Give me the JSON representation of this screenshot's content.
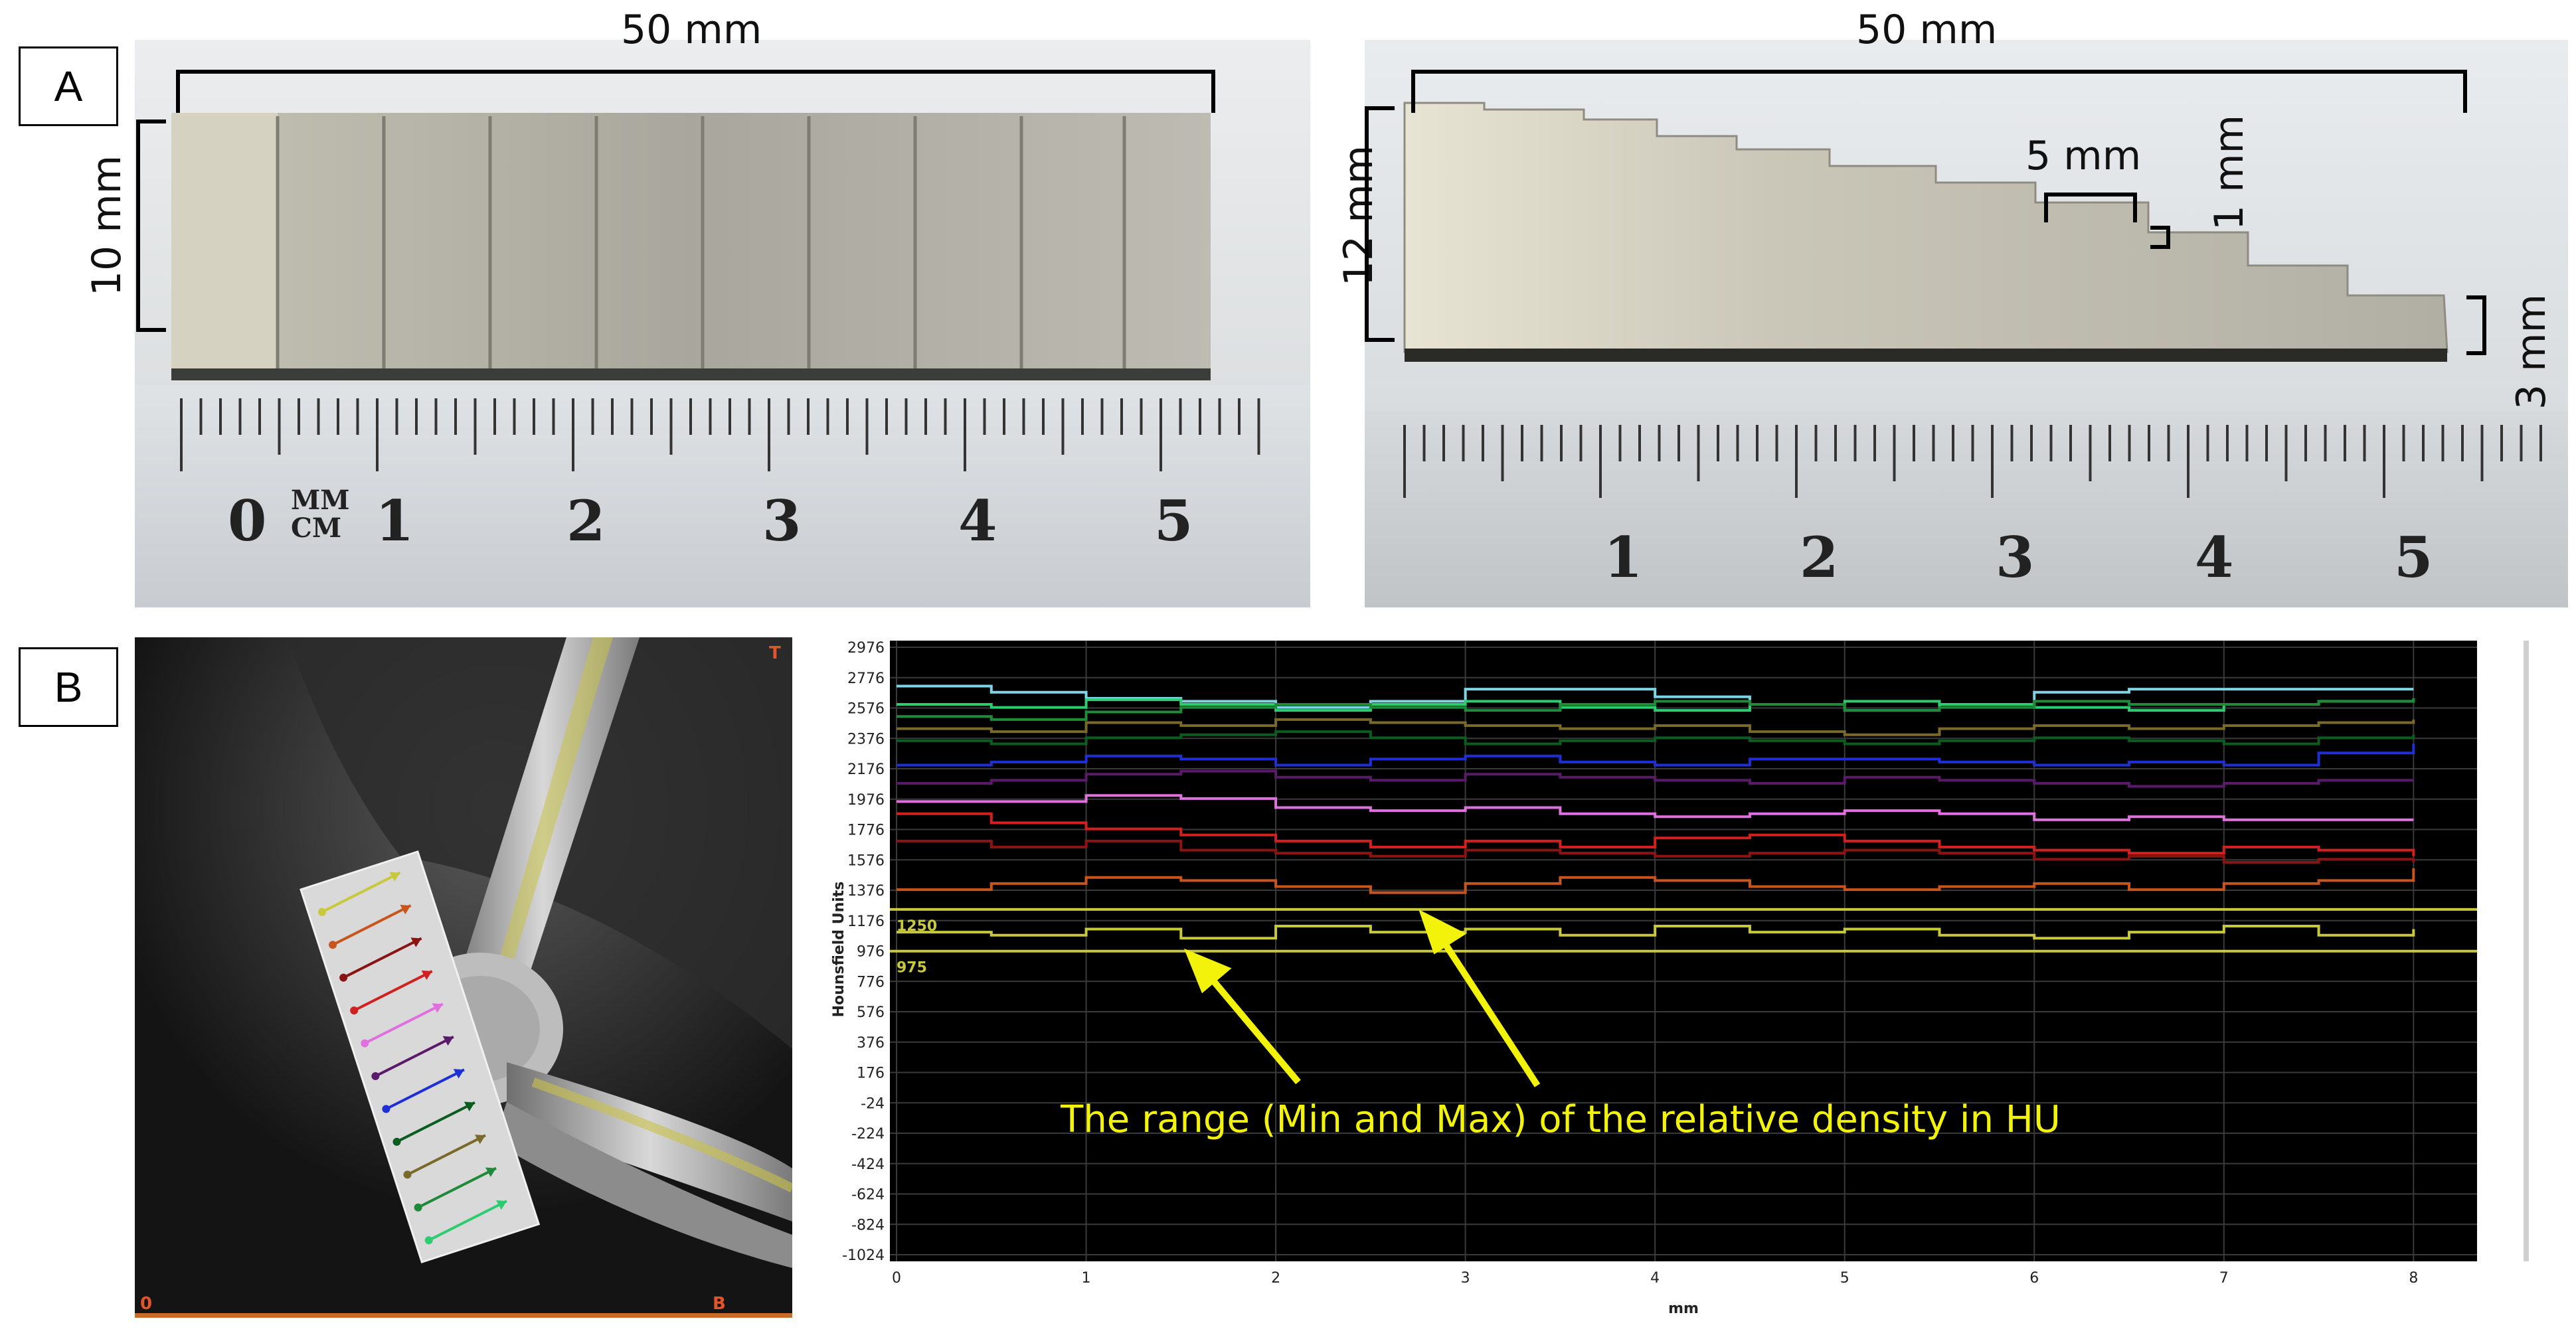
{
  "panels": {
    "a_label": "A",
    "b_label": "B"
  },
  "panel_a": {
    "left": {
      "length_label": "50 mm",
      "height_label": "10 mm",
      "ruler_numbers": [
        "0",
        "1",
        "2",
        "3",
        "4",
        "5"
      ],
      "ruler_unit_mm": "MM",
      "ruler_unit_cm": "CM"
    },
    "right": {
      "length_label": "50 mm",
      "height_label": "12 mm",
      "step_length_label": "5 mm",
      "step_height_label": "1 mm",
      "end_height_label": "3 mm",
      "ruler_numbers": [
        "1",
        "2",
        "3",
        "4",
        "5"
      ]
    }
  },
  "panel_b": {
    "xray": {
      "corner_top_right": "T",
      "corner_bottom_left": "0",
      "corner_bottom_right": "B"
    },
    "annotation": "The range (Min and Max) of the relative density in HU",
    "colors": {
      "annotation": "#f2f20a",
      "background": "#000000",
      "threshold": "#c8c83c"
    }
  },
  "chart_data": {
    "type": "line",
    "xlabel": "mm",
    "ylabel": "Hounsfield Units",
    "xlim": [
      0,
      8.3
    ],
    "ylim": [
      -1024,
      2976
    ],
    "x_ticks": [
      0,
      1,
      2,
      3,
      4,
      5,
      6,
      7,
      8
    ],
    "y_ticks": [
      2976,
      2776,
      2576,
      2376,
      2176,
      1976,
      1776,
      1576,
      1376,
      1176,
      976,
      776,
      576,
      376,
      176,
      -24,
      -224,
      -424,
      -624,
      -824,
      -1024
    ],
    "grid": true,
    "thresholds": [
      {
        "label": "1250",
        "value": 1250
      },
      {
        "label": "975",
        "value": 975
      }
    ],
    "series": [
      {
        "color": "#7fd3e6",
        "x": [
          0,
          0.5,
          1,
          1.5,
          2,
          2.5,
          3,
          3.5,
          4,
          4.5,
          5,
          5.5,
          6,
          6.5,
          7,
          7.5,
          8
        ],
        "values": [
          2720,
          2680,
          2640,
          2620,
          2580,
          2620,
          2700,
          2700,
          2650,
          2600,
          2560,
          2600,
          2680,
          2700,
          2700,
          2700,
          2700
        ]
      },
      {
        "color": "#2ecc71",
        "x": [
          0,
          0.5,
          1,
          1.5,
          2,
          2.5,
          3,
          3.5,
          4,
          4.5,
          5,
          5.5,
          6,
          6.5,
          7,
          7.5,
          8
        ],
        "values": [
          2600,
          2580,
          2630,
          2600,
          2560,
          2600,
          2620,
          2580,
          2560,
          2600,
          2620,
          2600,
          2580,
          2560,
          2600,
          2620,
          2640
        ]
      },
      {
        "color": "#1f8a3a",
        "x": [
          0,
          0.5,
          1,
          1.5,
          2,
          2.5,
          3,
          3.5,
          4,
          4.5,
          5,
          5.5,
          6,
          6.5,
          7,
          7.5,
          8
        ],
        "values": [
          2520,
          2500,
          2550,
          2580,
          2600,
          2580,
          2560,
          2600,
          2620,
          2600,
          2560,
          2580,
          2620,
          2600,
          2600,
          2620,
          2640
        ]
      },
      {
        "color": "#7a6a2a",
        "x": [
          0,
          0.5,
          1,
          1.5,
          2,
          2.5,
          3,
          3.5,
          4,
          4.5,
          5,
          5.5,
          6,
          6.5,
          7,
          7.5,
          8
        ],
        "values": [
          2440,
          2420,
          2480,
          2460,
          2500,
          2480,
          2460,
          2440,
          2460,
          2420,
          2400,
          2440,
          2460,
          2440,
          2460,
          2480,
          2500
        ]
      },
      {
        "color": "#0a5c1f",
        "x": [
          0,
          0.5,
          1,
          1.5,
          2,
          2.5,
          3,
          3.5,
          4,
          4.5,
          5,
          5.5,
          6,
          6.5,
          7,
          7.5,
          8
        ],
        "values": [
          2360,
          2340,
          2380,
          2400,
          2420,
          2380,
          2340,
          2360,
          2380,
          2360,
          2340,
          2360,
          2380,
          2360,
          2340,
          2380,
          2400
        ]
      },
      {
        "color": "#1f2fd6",
        "x": [
          0,
          0.5,
          1,
          1.5,
          2,
          2.5,
          3,
          3.5,
          4,
          4.5,
          5,
          5.5,
          6,
          6.5,
          7,
          7.5,
          8
        ],
        "values": [
          2200,
          2220,
          2260,
          2240,
          2200,
          2240,
          2260,
          2220,
          2200,
          2240,
          2240,
          2220,
          2200,
          2220,
          2200,
          2280,
          2340
        ]
      },
      {
        "color": "#5a1a6a",
        "x": [
          0,
          0.5,
          1,
          1.5,
          2,
          2.5,
          3,
          3.5,
          4,
          4.5,
          5,
          5.5,
          6,
          6.5,
          7,
          7.5,
          8
        ],
        "values": [
          2080,
          2100,
          2140,
          2160,
          2120,
          2100,
          2140,
          2120,
          2100,
          2080,
          2120,
          2100,
          2080,
          2060,
          2080,
          2100,
          2100
        ]
      },
      {
        "color": "#e070e0",
        "x": [
          0,
          0.5,
          1,
          1.5,
          2,
          2.5,
          3,
          3.5,
          4,
          4.5,
          5,
          5.5,
          6,
          6.5,
          7,
          7.5,
          8
        ],
        "values": [
          1960,
          1960,
          2000,
          1980,
          1920,
          1900,
          1920,
          1880,
          1860,
          1880,
          1900,
          1880,
          1840,
          1860,
          1840,
          1840,
          1840
        ]
      },
      {
        "color": "#d02020",
        "x": [
          0,
          0.5,
          1,
          1.5,
          2,
          2.5,
          3,
          3.5,
          4,
          4.5,
          5,
          5.5,
          6,
          6.5,
          7,
          7.5,
          8
        ],
        "values": [
          1880,
          1820,
          1780,
          1740,
          1700,
          1660,
          1700,
          1660,
          1720,
          1740,
          1700,
          1660,
          1640,
          1620,
          1660,
          1640,
          1600
        ]
      },
      {
        "color": "#8a1414",
        "x": [
          0,
          0.5,
          1,
          1.5,
          2,
          2.5,
          3,
          3.5,
          4,
          4.5,
          5,
          5.5,
          6,
          6.5,
          7,
          7.5,
          8
        ],
        "values": [
          1700,
          1660,
          1700,
          1640,
          1620,
          1600,
          1640,
          1620,
          1600,
          1620,
          1640,
          1620,
          1580,
          1600,
          1560,
          1580,
          1560
        ]
      },
      {
        "color": "#c8551c",
        "x": [
          0,
          0.5,
          1,
          1.5,
          2,
          2.5,
          3,
          3.5,
          4,
          4.5,
          5,
          5.5,
          6,
          6.5,
          7,
          7.5,
          8
        ],
        "values": [
          1380,
          1420,
          1460,
          1440,
          1400,
          1360,
          1420,
          1460,
          1440,
          1400,
          1380,
          1400,
          1420,
          1380,
          1420,
          1440,
          1520
        ]
      },
      {
        "color": "#c8c83c",
        "x": [
          0,
          0.5,
          1,
          1.5,
          2,
          2.5,
          3,
          3.5,
          4,
          4.5,
          5,
          5.5,
          6,
          6.5,
          7,
          7.5,
          8
        ],
        "values": [
          1100,
          1080,
          1120,
          1060,
          1140,
          1100,
          1120,
          1080,
          1140,
          1100,
          1120,
          1080,
          1060,
          1100,
          1140,
          1080,
          1120
        ]
      }
    ]
  }
}
